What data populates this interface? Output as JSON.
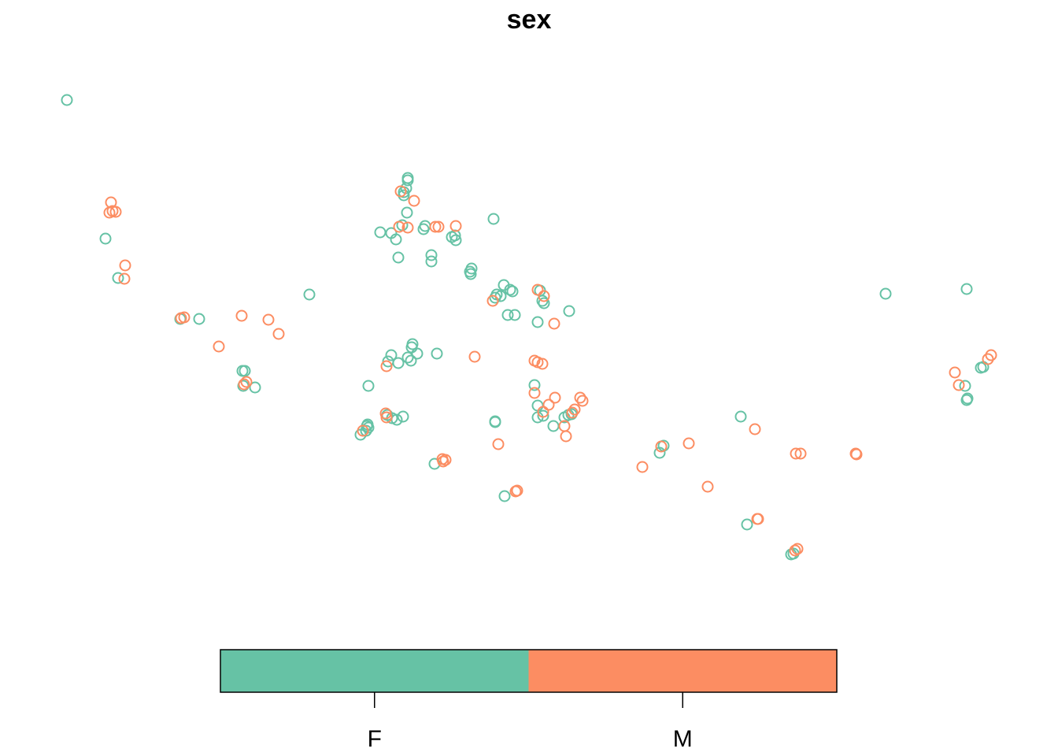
{
  "chart_data": {
    "type": "scatter",
    "title": "sex",
    "xlabel": "",
    "ylabel": "",
    "grid": false,
    "marker": "open-circle",
    "legend": {
      "position": "bottom",
      "style": "color-bar",
      "categories": [
        "F",
        "M"
      ]
    },
    "colors": {
      "F": "#66c2a5",
      "M": "#fc8d62",
      "axis": "#000000",
      "background": "#ffffff"
    },
    "series": [
      {
        "category": "F",
        "points": [
          [
            85,
            127
          ],
          [
            518,
            226
          ],
          [
            518,
            229
          ],
          [
            516,
            239
          ],
          [
            513,
            244
          ],
          [
            513,
            248
          ],
          [
            517,
            270
          ],
          [
            511,
            286
          ],
          [
            540,
            287
          ],
          [
            538,
            291
          ],
          [
            483,
            295
          ],
          [
            497,
            296
          ],
          [
            503,
            304
          ],
          [
            627,
            278
          ],
          [
            578,
            299
          ],
          [
            574,
            301
          ],
          [
            579,
            305
          ],
          [
            506,
            327
          ],
          [
            548,
            324
          ],
          [
            548,
            332
          ],
          [
            599,
            341
          ],
          [
            597,
            345
          ],
          [
            598,
            348
          ],
          [
            134,
            303
          ],
          [
            150,
            353
          ],
          [
            393,
            374
          ],
          [
            631,
            374
          ],
          [
            629,
            378
          ],
          [
            636,
            376
          ],
          [
            640,
            362
          ],
          [
            648,
            368
          ],
          [
            651,
            370
          ],
          [
            686,
            369
          ],
          [
            689,
            382
          ],
          [
            691,
            385
          ],
          [
            723,
            395
          ],
          [
            645,
            400
          ],
          [
            654,
            400
          ],
          [
            683,
            409
          ],
          [
            253,
            405
          ],
          [
            229,
            405
          ],
          [
            524,
            437
          ],
          [
            523,
            441
          ],
          [
            497,
            451
          ],
          [
            493,
            459
          ],
          [
            506,
            461
          ],
          [
            518,
            454
          ],
          [
            522,
            458
          ],
          [
            530,
            449
          ],
          [
            555,
            449
          ],
          [
            308,
            471
          ],
          [
            311,
            471
          ],
          [
            309,
            490
          ],
          [
            324,
            492
          ],
          [
            468,
            490
          ],
          [
            679,
            489
          ],
          [
            683,
            515
          ],
          [
            629,
            535
          ],
          [
            629,
            536
          ],
          [
            683,
            530
          ],
          [
            690,
            528
          ],
          [
            717,
            530
          ],
          [
            722,
            527
          ],
          [
            726,
            526
          ],
          [
            703,
            541
          ],
          [
            492,
            527
          ],
          [
            512,
            529
          ],
          [
            504,
            533
          ],
          [
            498,
            531
          ],
          [
            467,
            539
          ],
          [
            466,
            541
          ],
          [
            468,
            543
          ],
          [
            465,
            547
          ],
          [
            458,
            552
          ],
          [
            552,
            589
          ],
          [
            838,
            575
          ],
          [
            843,
            566
          ],
          [
            641,
            630
          ],
          [
            941,
            529
          ],
          [
            1125,
            373
          ],
          [
            1228,
            367
          ],
          [
            1246,
            467
          ],
          [
            1249,
            466
          ],
          [
            1226,
            490
          ],
          [
            1229,
            506
          ],
          [
            1228,
            508
          ],
          [
            949,
            666
          ],
          [
            1008,
            703
          ],
          [
            1005,
            704
          ]
        ]
      },
      {
        "category": "M",
        "points": [
          [
            141,
            257
          ],
          [
            139,
            270
          ],
          [
            143,
            268
          ],
          [
            147,
            269
          ],
          [
            509,
            243
          ],
          [
            526,
            255
          ],
          [
            507,
            288
          ],
          [
            518,
            289
          ],
          [
            553,
            288
          ],
          [
            557,
            288
          ],
          [
            579,
            287
          ],
          [
            159,
            337
          ],
          [
            158,
            354
          ],
          [
            683,
            368
          ],
          [
            691,
            376
          ],
          [
            626,
            382
          ],
          [
            704,
            411
          ],
          [
            230,
            404
          ],
          [
            234,
            403
          ],
          [
            307,
            401
          ],
          [
            341,
            406
          ],
          [
            354,
            424
          ],
          [
            278,
            440
          ],
          [
            603,
            453
          ],
          [
            679,
            458
          ],
          [
            683,
            460
          ],
          [
            689,
            462
          ],
          [
            491,
            465
          ],
          [
            313,
            485
          ],
          [
            310,
            488
          ],
          [
            679,
            499
          ],
          [
            705,
            505
          ],
          [
            697,
            514
          ],
          [
            737,
            505
          ],
          [
            740,
            509
          ],
          [
            730,
            520
          ],
          [
            727,
            524
          ],
          [
            690,
            523
          ],
          [
            717,
            541
          ],
          [
            719,
            554
          ],
          [
            490,
            525
          ],
          [
            491,
            530
          ],
          [
            461,
            547
          ],
          [
            633,
            564
          ],
          [
            562,
            583
          ],
          [
            566,
            584
          ],
          [
            563,
            586
          ],
          [
            657,
            623
          ],
          [
            655,
            624
          ],
          [
            959,
            545
          ],
          [
            875,
            563
          ],
          [
            840,
            567
          ],
          [
            816,
            593
          ],
          [
            899,
            618
          ],
          [
            1011,
            576
          ],
          [
            1017,
            576
          ],
          [
            1087,
            576
          ],
          [
            1088,
            577
          ],
          [
            962,
            659
          ],
          [
            963,
            659
          ],
          [
            1010,
            699
          ],
          [
            1013,
            697
          ],
          [
            1213,
            473
          ],
          [
            1218,
            489
          ],
          [
            1259,
            451
          ],
          [
            1255,
            456
          ]
        ]
      }
    ]
  }
}
